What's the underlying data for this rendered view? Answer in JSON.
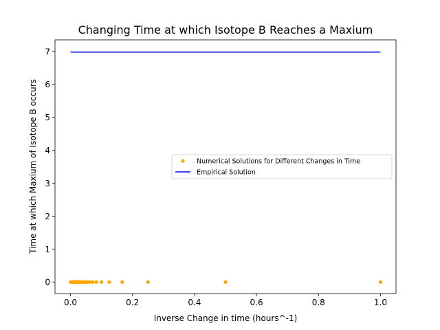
{
  "chart_data": {
    "type": "scatter",
    "title": "Changing Time at which Isotope B Reaches a Maxium",
    "xlabel": "Inverse Change in time (hours^-1)",
    "ylabel": "Time at which Maxium of Isotope B occurs",
    "xlim": [
      -0.05,
      1.05
    ],
    "ylim": [
      -0.35,
      7.35
    ],
    "xticks": [
      0.0,
      0.2,
      0.4,
      0.6,
      0.8,
      1.0
    ],
    "xtick_labels": [
      "0.0",
      "0.2",
      "0.4",
      "0.6",
      "0.8",
      "1.0"
    ],
    "yticks": [
      0,
      1,
      2,
      3,
      4,
      5,
      6,
      7
    ],
    "ytick_labels": [
      "0",
      "1",
      "2",
      "3",
      "4",
      "5",
      "6",
      "7"
    ],
    "grid": false,
    "legend_position": "center-right",
    "series": [
      {
        "name": "Numerical Solutions for Different Changes in Time",
        "kind": "scatter",
        "color": "#ffa500",
        "x": [
          1.0,
          0.5,
          0.25,
          0.1667,
          0.125,
          0.1,
          0.0833,
          0.0714,
          0.0625,
          0.0556,
          0.05,
          0.0455,
          0.0417,
          0.0385,
          0.0357,
          0.0333,
          0.03125,
          0.0294,
          0.0278,
          0.0263,
          0.025,
          0.0238,
          0.0227,
          0.0217,
          0.0208,
          0.02,
          0.0185,
          0.0167,
          0.015,
          0.0133,
          0.0117,
          0.01,
          0.0083,
          0.0067,
          0.005,
          0.0033,
          0.0017,
          0.0008
        ],
        "y": [
          0,
          0,
          0,
          0,
          0,
          0,
          0,
          0,
          0,
          0,
          0,
          0,
          0,
          0,
          0,
          0,
          0,
          0,
          0,
          0,
          0,
          0,
          0,
          0,
          0,
          0,
          0,
          0,
          0,
          0,
          0,
          0,
          0,
          0,
          0,
          0,
          0,
          0
        ]
      },
      {
        "name": "Empirical Solution",
        "kind": "line",
        "color": "#0000ff",
        "x": [
          0.0,
          1.0
        ],
        "y": [
          6.98,
          6.98
        ]
      }
    ]
  }
}
